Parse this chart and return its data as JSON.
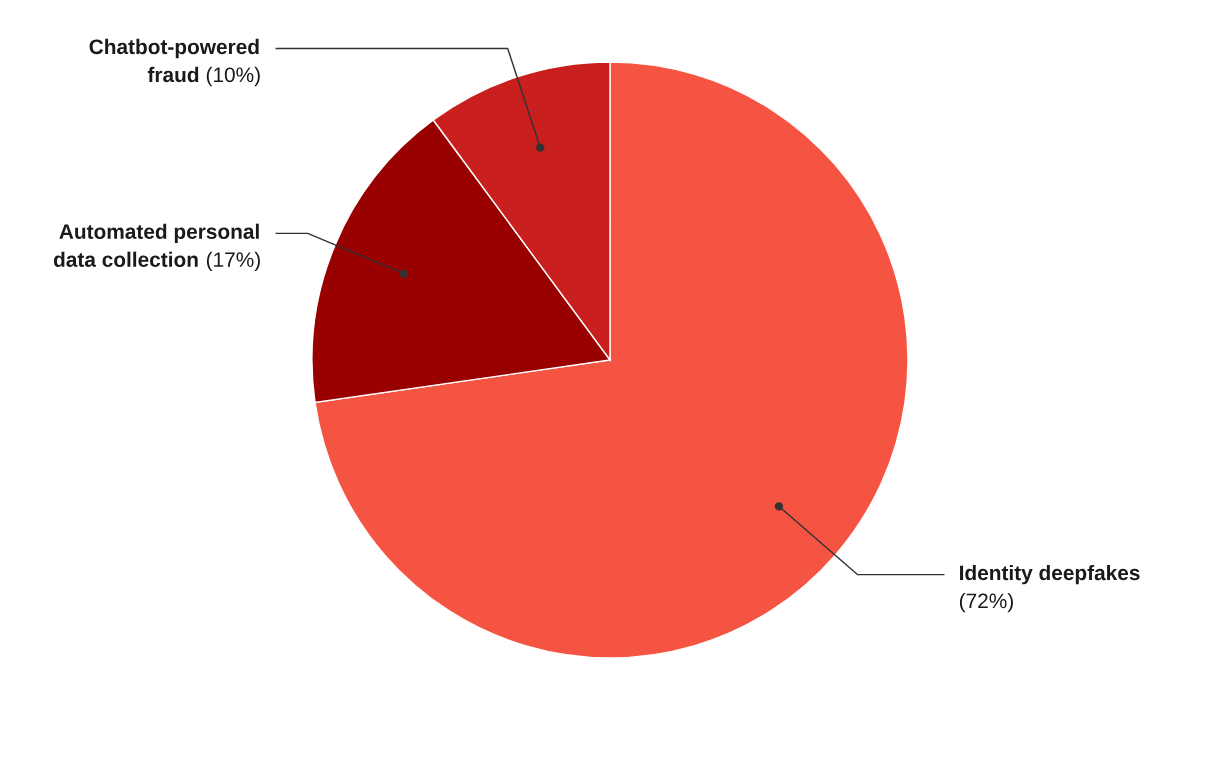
{
  "chart_data": {
    "type": "pie",
    "categories": [
      "Identity deepfakes",
      "Automated personal data collection",
      "Chatbot-powered fraud"
    ],
    "values": [
      72,
      17,
      10
    ],
    "value_labels": [
      "(72%)",
      "(17%)",
      "(10%)"
    ],
    "colors": [
      "#f55442",
      "#990000",
      "#c91f1f"
    ]
  }
}
